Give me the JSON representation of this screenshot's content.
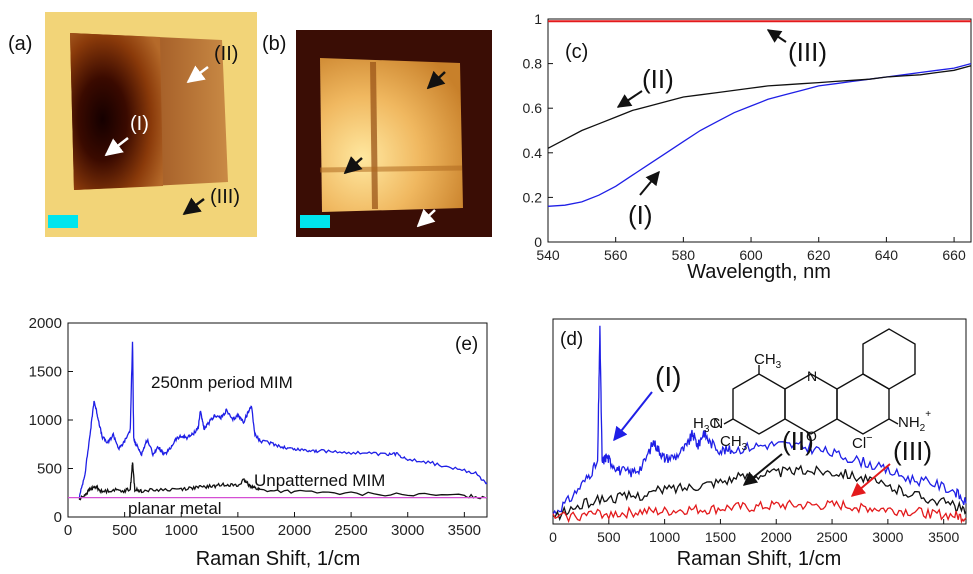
{
  "colors": {
    "blue": "#1f1fe6",
    "black": "#111111",
    "red": "#e31a1c",
    "magenta": "#d44fd4",
    "cyan": "#00e5ee"
  },
  "panels": {
    "a": {
      "label": "(a)",
      "annotations": [
        "(I)",
        "(II)",
        "(III)"
      ]
    },
    "b": {
      "label": "(b)"
    }
  },
  "chart_data": [
    {
      "id": "c",
      "panel_label": "(c)",
      "type": "line",
      "xlabel": "Wavelength, nm",
      "ylabel": "",
      "xlim": [
        540,
        665
      ],
      "ylim": [
        0,
        1
      ],
      "xticks": [
        540,
        560,
        580,
        600,
        620,
        640,
        660
      ],
      "yticks": [
        0,
        0.2,
        0.4,
        0.6,
        0.8,
        1
      ],
      "ytick_labels": [
        "0",
        "0.2",
        "0.4",
        "0.6",
        "0.8",
        "1"
      ],
      "series": [
        {
          "name": "(I)",
          "color": "blue",
          "x": [
            540,
            545,
            550,
            555,
            560,
            565,
            570,
            575,
            580,
            585,
            590,
            595,
            600,
            605,
            610,
            615,
            620,
            625,
            630,
            635,
            640,
            645,
            650,
            655,
            660,
            665
          ],
          "y": [
            0.16,
            0.165,
            0.18,
            0.21,
            0.25,
            0.3,
            0.35,
            0.4,
            0.45,
            0.5,
            0.54,
            0.58,
            0.61,
            0.64,
            0.66,
            0.68,
            0.7,
            0.71,
            0.72,
            0.73,
            0.74,
            0.75,
            0.76,
            0.77,
            0.78,
            0.8
          ]
        },
        {
          "name": "(II)",
          "color": "black",
          "x": [
            540,
            545,
            550,
            555,
            560,
            565,
            570,
            575,
            580,
            585,
            590,
            595,
            600,
            605,
            610,
            615,
            620,
            625,
            630,
            635,
            640,
            645,
            650,
            655,
            660,
            665
          ],
          "y": [
            0.42,
            0.46,
            0.5,
            0.53,
            0.56,
            0.59,
            0.61,
            0.63,
            0.65,
            0.66,
            0.67,
            0.68,
            0.69,
            0.7,
            0.705,
            0.71,
            0.715,
            0.72,
            0.725,
            0.73,
            0.74,
            0.745,
            0.75,
            0.76,
            0.77,
            0.79
          ]
        },
        {
          "name": "(III)",
          "color": "red",
          "x": [
            540,
            665
          ],
          "y": [
            0.99,
            0.99
          ]
        }
      ],
      "annotations": [
        {
          "text": "(III)",
          "x": 608,
          "y": 0.93
        },
        {
          "text": "(II)",
          "x": 564,
          "y": 0.72
        },
        {
          "text": "(I)",
          "x": 580,
          "y": 0.25
        }
      ]
    },
    {
      "id": "e",
      "panel_label": "(e)",
      "type": "line",
      "xlabel": "Raman Shift, 1/cm",
      "ylabel": "",
      "xlim": [
        0,
        3700
      ],
      "ylim": [
        0,
        2000
      ],
      "xticks": [
        0,
        500,
        1000,
        1500,
        2000,
        2500,
        3000,
        3500
      ],
      "yticks": [
        0,
        500,
        1000,
        1500,
        2000
      ],
      "series": [
        {
          "name": "250nm period MIM",
          "color": "blue",
          "x": [
            100,
            150,
            200,
            230,
            260,
            300,
            350,
            400,
            450,
            500,
            550,
            570,
            580,
            600,
            650,
            700,
            750,
            800,
            850,
            900,
            950,
            1000,
            1050,
            1100,
            1150,
            1170,
            1200,
            1250,
            1300,
            1350,
            1400,
            1450,
            1500,
            1550,
            1600,
            1620,
            1650,
            1700,
            1800,
            1900,
            2000,
            2100,
            2200,
            2400,
            2600,
            2800,
            2900,
            3000,
            3200,
            3400,
            3600,
            3700
          ],
          "y": [
            200,
            450,
            900,
            1200,
            1050,
            830,
            760,
            850,
            700,
            780,
            900,
            1820,
            800,
            750,
            650,
            800,
            650,
            720,
            640,
            700,
            800,
            830,
            820,
            850,
            920,
            1100,
            900,
            980,
            1050,
            1020,
            1100,
            1000,
            1050,
            980,
            1100,
            1150,
            850,
            780,
            760,
            720,
            700,
            690,
            680,
            670,
            660,
            640,
            650,
            600,
            560,
            500,
            450,
            350
          ]
        },
        {
          "name": "Unpatterned MIM",
          "color": "black",
          "x": [
            100,
            150,
            200,
            250,
            300,
            400,
            500,
            550,
            570,
            590,
            650,
            800,
            1000,
            1100,
            1200,
            1300,
            1400,
            1500,
            1550,
            1600,
            1650,
            1700,
            2000,
            2500,
            3000,
            3500,
            3700
          ],
          "y": [
            180,
            230,
            290,
            310,
            260,
            280,
            270,
            290,
            560,
            280,
            270,
            280,
            290,
            300,
            310,
            320,
            340,
            320,
            380,
            330,
            300,
            280,
            260,
            240,
            230,
            220,
            200
          ]
        },
        {
          "name": "planar metal",
          "color": "magenta",
          "x": [
            0,
            3700
          ],
          "y": [
            200,
            200
          ]
        }
      ],
      "annotations": [
        {
          "text": "250nm period MIM",
          "x": 330,
          "y": 1050
        },
        {
          "text": "Unpatterned MIM",
          "x": 1700,
          "y": 420
        },
        {
          "text": "planar metal",
          "x": 230,
          "y": 60
        }
      ]
    },
    {
      "id": "d",
      "panel_label": "(d)",
      "type": "line",
      "xlabel": "Raman Shift, 1/cm",
      "ylabel": "",
      "xlim": [
        0,
        3700
      ],
      "ylim": [
        0,
        1
      ],
      "xticks": [
        0,
        500,
        1000,
        1500,
        2000,
        2500,
        3000,
        3500
      ],
      "yticks": [],
      "series": [
        {
          "name": "(I)",
          "color": "blue",
          "x": [
            0,
            150,
            300,
            400,
            420,
            440,
            480,
            520,
            600,
            700,
            800,
            900,
            950,
            1000,
            1100,
            1200,
            1250,
            1300,
            1350,
            1400,
            1500,
            1600,
            1800,
            2000,
            2200,
            2400,
            2600,
            2800,
            3000,
            3200,
            3400,
            3600,
            3700
          ],
          "y": [
            0.05,
            0.12,
            0.22,
            0.3,
            0.95,
            0.3,
            0.33,
            0.3,
            0.26,
            0.25,
            0.28,
            0.4,
            0.36,
            0.32,
            0.33,
            0.38,
            0.44,
            0.38,
            0.45,
            0.4,
            0.36,
            0.36,
            0.38,
            0.39,
            0.38,
            0.36,
            0.33,
            0.3,
            0.26,
            0.22,
            0.2,
            0.16,
            0.1
          ]
        },
        {
          "name": "(II)",
          "color": "black",
          "x": [
            0,
            200,
            400,
            600,
            800,
            1000,
            1200,
            1400,
            1600,
            1800,
            2000,
            2200,
            2400,
            2600,
            2800,
            3000,
            3200,
            3400,
            3600,
            3700
          ],
          "y": [
            0.03,
            0.08,
            0.12,
            0.13,
            0.14,
            0.17,
            0.18,
            0.2,
            0.22,
            0.24,
            0.25,
            0.26,
            0.26,
            0.25,
            0.22,
            0.18,
            0.15,
            0.12,
            0.09,
            0.06
          ]
        },
        {
          "name": "(III)",
          "color": "red",
          "x": [
            0,
            200,
            400,
            600,
            800,
            1000,
            1200,
            1400,
            1600,
            1800,
            2000,
            2200,
            2400,
            2600,
            2800,
            3000,
            3200,
            3400,
            3600,
            3700
          ],
          "y": [
            0.03,
            0.04,
            0.05,
            0.05,
            0.06,
            0.06,
            0.07,
            0.07,
            0.08,
            0.08,
            0.09,
            0.09,
            0.09,
            0.09,
            0.08,
            0.07,
            0.06,
            0.05,
            0.04,
            0.03
          ]
        }
      ],
      "annotations": [
        {
          "text": "(I)",
          "x": 650,
          "y": 0.8
        },
        {
          "text": "(II)",
          "x": 1900,
          "y": 0.42
        },
        {
          "text": "(III)",
          "x": 3000,
          "y": 0.38
        }
      ],
      "molecule": {
        "CH3": "CH",
        "sub3": "3",
        "H3C": "H",
        "NH2": "NH",
        "sub2": "2",
        "plus": "+",
        "Cl": "Cl",
        "minus": "−"
      }
    }
  ]
}
